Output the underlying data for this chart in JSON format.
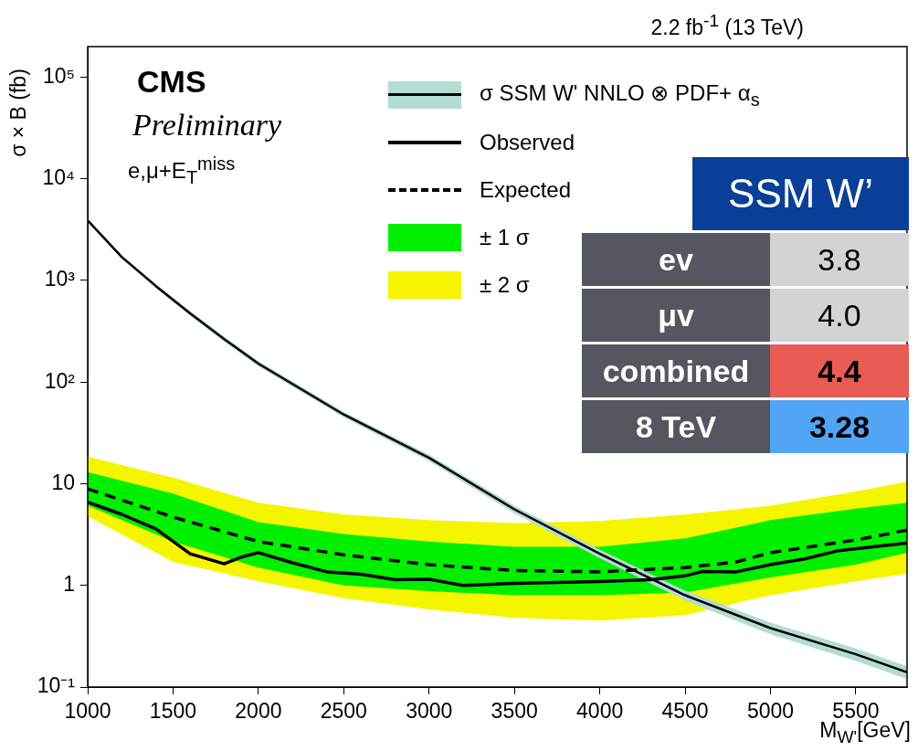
{
  "chart_data": {
    "type": "line",
    "title": "2.2 fb$^{-1}$ (13 TeV)",
    "xlabel": "M$_{W'}$[GeV]",
    "ylabel": "σ × B (fb)",
    "annotations": [
      "CMS",
      "Preliminary",
      "e,μ+E$_{T}$$^{miss}$",
      "SSM W’",
      "ev",
      "3.8",
      "μv",
      "4.0",
      "combined",
      "4.4",
      "8 TeV",
      "3.28"
    ],
    "xlim": [
      1000,
      5800
    ],
    "xticks": [
      1000,
      1500,
      2000,
      2500,
      3000,
      3500,
      4000,
      4500,
      5000,
      5500
    ],
    "ylim": [
      0.1,
      200000
    ],
    "yticks": [
      {
        "value": 0.1,
        "label": "10⁻¹"
      },
      1,
      10,
      {
        "value": 100,
        "label": "10²"
      },
      {
        "value": 1000,
        "label": "10³"
      },
      {
        "value": 10000,
        "label": "10⁴"
      },
      {
        "value": 100000,
        "label": "10⁵"
      }
    ],
    "log": "y",
    "legend": "top",
    "marker": "none",
    "series": [
      {
        "type": "line",
        "name": "σ SSM W' NNLO ⊗ PDF+ α$_{s}$",
        "color": "#000000",
        "x": [
          1000,
          1200,
          1400,
          1600,
          1800,
          2000,
          2500,
          3000,
          3500,
          4000,
          4500,
          5000,
          5500,
          5800
        ],
        "values": [
          3900,
          1700,
          880,
          475,
          265,
          152,
          48,
          18,
          5.6,
          2.05,
          0.8,
          0.38,
          0.21,
          0.14
        ],
        "lower": [
          3750,
          1630,
          840,
          450,
          250,
          143,
          45,
          16.7,
          5.1,
          1.85,
          0.71,
          0.33,
          0.18,
          0.12
        ],
        "upper": [
          4050,
          1770,
          920,
          500,
          280,
          161,
          51,
          19.3,
          6.1,
          2.25,
          0.89,
          0.43,
          0.24,
          0.16
        ]
      },
      {
        "type": "line",
        "name": "Observed",
        "color": "#000000",
        "line_style": "solid",
        "x": [
          1000,
          1200,
          1400,
          1600,
          1800,
          1900,
          2000,
          2200,
          2400,
          2600,
          2800,
          3000,
          3200,
          3500,
          4000,
          4300,
          4500,
          4600,
          4800,
          5000,
          5200,
          5400,
          5600,
          5800
        ],
        "values": [
          6.6,
          5.0,
          3.6,
          2.05,
          1.63,
          1.9,
          2.1,
          1.67,
          1.36,
          1.29,
          1.14,
          1.15,
          1.0,
          1.05,
          1.09,
          1.14,
          1.24,
          1.37,
          1.36,
          1.6,
          1.82,
          2.2,
          2.4,
          2.6
        ]
      },
      {
        "type": "line",
        "name": "Expected",
        "color": "#000000",
        "line_style": "dashed",
        "x": [
          1000,
          1500,
          2000,
          2500,
          3000,
          3500,
          4000,
          4500,
          4800,
          5000,
          5500,
          5800
        ],
        "values": [
          8.9,
          4.7,
          2.7,
          2.0,
          1.6,
          1.4,
          1.36,
          1.5,
          1.7,
          2.1,
          2.8,
          3.5
        ]
      },
      {
        "type": "line",
        "name": "± 1 σ",
        "color": "#00f000",
        "x": [
          1000,
          1500,
          2000,
          2500,
          3000,
          3500,
          4000,
          4500,
          4800,
          5000,
          5500,
          5800
        ],
        "values": [
          null,
          null,
          null,
          null,
          null,
          null,
          null,
          null,
          null,
          null,
          null,
          null
        ],
        "lower": [
          6.1,
          2.7,
          1.5,
          1.0,
          0.88,
          0.8,
          0.8,
          0.85,
          1.05,
          1.2,
          1.6,
          2.1
        ],
        "upper": [
          13,
          8,
          4.2,
          3.2,
          2.7,
          2.4,
          2.4,
          2.9,
          3.7,
          4.4,
          5.7,
          6.5
        ]
      },
      {
        "type": "line",
        "name": "± 2 σ",
        "color": "#f5f500",
        "x": [
          1000,
          1500,
          2000,
          2500,
          3000,
          3500,
          4000,
          4500,
          4800,
          5000,
          5500,
          5800
        ],
        "values": [
          null,
          null,
          null,
          null,
          null,
          null,
          null,
          null,
          null,
          null,
          null,
          null
        ],
        "lower": [
          4.8,
          1.7,
          1.1,
          0.75,
          0.58,
          0.48,
          0.45,
          0.51,
          0.67,
          0.8,
          1.1,
          1.3
        ],
        "upper": [
          18.5,
          11.5,
          6.5,
          5.0,
          4.4,
          4.1,
          4.3,
          5.0,
          5.6,
          6.1,
          8.4,
          10.5
        ]
      }
    ]
  }
}
